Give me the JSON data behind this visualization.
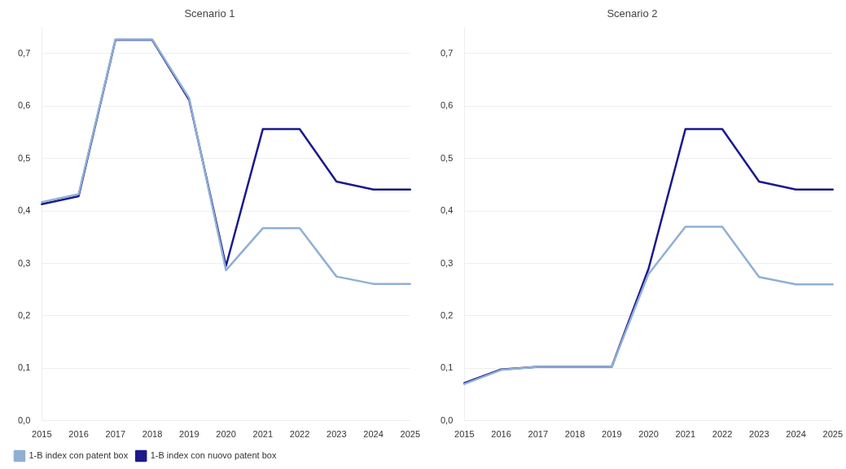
{
  "chart_data": [
    {
      "type": "line",
      "title": "Scenario 1",
      "categories": [
        "2015",
        "2016",
        "2017",
        "2018",
        "2019",
        "2020",
        "2021",
        "2022",
        "2023",
        "2024",
        "2025"
      ],
      "series": [
        {
          "name": "1-B index con patent box",
          "color": "#8fb0d4",
          "values": [
            0.417,
            0.432,
            0.727,
            0.727,
            0.615,
            0.287,
            0.367,
            0.367,
            0.275,
            0.261,
            0.261
          ]
        },
        {
          "name": "1-B index con nuovo patent box",
          "color": "#1a1a8c",
          "values": [
            0.413,
            0.428,
            0.726,
            0.726,
            0.612,
            0.295,
            0.556,
            0.556,
            0.456,
            0.441,
            0.441
          ]
        }
      ],
      "ylim": [
        0,
        0.75
      ],
      "yticks": [
        {
          "value": 0,
          "label": "0,0"
        },
        {
          "value": 0.1,
          "label": "0,1"
        },
        {
          "value": 0.2,
          "label": "0,2"
        },
        {
          "value": 0.3,
          "label": "0,3"
        },
        {
          "value": 0.4,
          "label": "0,4"
        },
        {
          "value": 0.5,
          "label": "0,5"
        },
        {
          "value": 0.6,
          "label": "0,6"
        },
        {
          "value": 0.7,
          "label": "0,7"
        }
      ],
      "grid": "y",
      "legend": "bottom",
      "marker": "none"
    },
    {
      "type": "line",
      "title": "Scenario 2",
      "categories": [
        "2015",
        "2016",
        "2017",
        "2018",
        "2019",
        "2020",
        "2021",
        "2022",
        "2023",
        "2024",
        "2025"
      ],
      "series": [
        {
          "color": "#8fb0d4",
          "values": [
            0.07,
            0.097,
            0.103,
            0.103,
            0.103,
            0.28,
            0.37,
            0.37,
            0.274,
            0.26,
            0.26
          ]
        },
        {
          "color": "#1a1a8c",
          "values": [
            0.072,
            0.098,
            0.103,
            0.103,
            0.103,
            0.29,
            0.556,
            0.556,
            0.456,
            0.441,
            0.441
          ]
        }
      ],
      "ylim": [
        0,
        0.75
      ],
      "yticks": [
        {
          "value": 0,
          "label": "0,0"
        },
        {
          "value": 0.1,
          "label": "0,1"
        },
        {
          "value": 0.2,
          "label": "0,2"
        },
        {
          "value": 0.3,
          "label": "0,3"
        },
        {
          "value": 0.4,
          "label": "0,4"
        },
        {
          "value": 0.5,
          "label": "0,5"
        },
        {
          "value": 0.6,
          "label": "0,6"
        },
        {
          "value": 0.7,
          "label": "0,7"
        }
      ],
      "grid": "y",
      "legend": false,
      "marker": "none"
    }
  ]
}
